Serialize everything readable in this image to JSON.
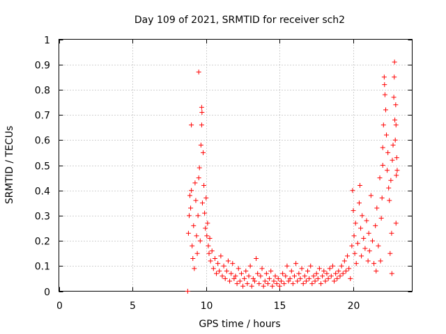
{
  "chart_data": {
    "type": "scatter",
    "title": "Day 109 of 2021, SRMTID for receiver sch2",
    "xlabel": "GPS time / hours",
    "ylabel": "SRMTID / TECUs",
    "xlim": [
      0,
      24
    ],
    "ylim": [
      0,
      1
    ],
    "x_ticks": [
      "0",
      "5",
      "10",
      "15",
      "20"
    ],
    "x_tick_values": [
      0,
      5,
      10,
      15,
      20
    ],
    "y_ticks": [
      "0",
      "0.1",
      "0.2",
      "0.3",
      "0.4",
      "0.5",
      "0.6",
      "0.7",
      "0.8",
      "0.9",
      "1"
    ],
    "y_tick_values": [
      0,
      0.1,
      0.2,
      0.3,
      0.4,
      0.5,
      0.6,
      0.7,
      0.8,
      0.9,
      1
    ],
    "grid": true,
    "marker": "+",
    "color": "#ff0000",
    "series": [
      {
        "name": "sch2",
        "points": [
          [
            8.75,
            0.0
          ],
          [
            8.8,
            0.23
          ],
          [
            8.85,
            0.3
          ],
          [
            8.9,
            0.38
          ],
          [
            8.95,
            0.33
          ],
          [
            9.0,
            0.4
          ],
          [
            9.0,
            0.66
          ],
          [
            9.05,
            0.18
          ],
          [
            9.1,
            0.13
          ],
          [
            9.15,
            0.26
          ],
          [
            9.2,
            0.09
          ],
          [
            9.25,
            0.43
          ],
          [
            9.3,
            0.36
          ],
          [
            9.35,
            0.22
          ],
          [
            9.4,
            0.15
          ],
          [
            9.45,
            0.3
          ],
          [
            9.5,
            0.87
          ],
          [
            9.5,
            0.45
          ],
          [
            9.55,
            0.49
          ],
          [
            9.6,
            0.2
          ],
          [
            9.65,
            0.58
          ],
          [
            9.7,
            0.66
          ],
          [
            9.7,
            0.73
          ],
          [
            9.72,
            0.71
          ],
          [
            9.75,
            0.35
          ],
          [
            9.8,
            0.55
          ],
          [
            9.85,
            0.42
          ],
          [
            9.9,
            0.31
          ],
          [
            9.95,
            0.25
          ],
          [
            10.0,
            0.37
          ],
          [
            10.05,
            0.22
          ],
          [
            10.1,
            0.27
          ],
          [
            10.15,
            0.18
          ],
          [
            10.2,
            0.15
          ],
          [
            10.25,
            0.21
          ],
          [
            10.3,
            0.12
          ],
          [
            10.4,
            0.16
          ],
          [
            10.5,
            0.09
          ],
          [
            10.6,
            0.13
          ],
          [
            10.7,
            0.07
          ],
          [
            10.8,
            0.11
          ],
          [
            10.9,
            0.08
          ],
          [
            11.0,
            0.14
          ],
          [
            11.1,
            0.06
          ],
          [
            11.2,
            0.1
          ],
          [
            11.3,
            0.05
          ],
          [
            11.4,
            0.08
          ],
          [
            11.5,
            0.12
          ],
          [
            11.6,
            0.04
          ],
          [
            11.7,
            0.07
          ],
          [
            11.8,
            0.11
          ],
          [
            11.9,
            0.05
          ],
          [
            12.0,
            0.06
          ],
          [
            12.1,
            0.03
          ],
          [
            12.2,
            0.09
          ],
          [
            12.3,
            0.04
          ],
          [
            12.4,
            0.07
          ],
          [
            12.5,
            0.02
          ],
          [
            12.6,
            0.05
          ],
          [
            12.7,
            0.08
          ],
          [
            12.8,
            0.03
          ],
          [
            12.9,
            0.06
          ],
          [
            13.0,
            0.1
          ],
          [
            13.1,
            0.02
          ],
          [
            13.2,
            0.05
          ],
          [
            13.3,
            0.04
          ],
          [
            13.4,
            0.13
          ],
          [
            13.5,
            0.07
          ],
          [
            13.6,
            0.03
          ],
          [
            13.7,
            0.06
          ],
          [
            13.8,
            0.09
          ],
          [
            13.9,
            0.02
          ],
          [
            14.0,
            0.04
          ],
          [
            14.1,
            0.07
          ],
          [
            14.2,
            0.03
          ],
          [
            14.3,
            0.05
          ],
          [
            14.4,
            0.08
          ],
          [
            14.5,
            0.02
          ],
          [
            14.6,
            0.04
          ],
          [
            14.7,
            0.06
          ],
          [
            14.8,
            0.03
          ],
          [
            14.9,
            0.05
          ],
          [
            15.0,
            0.02
          ],
          [
            15.1,
            0.04
          ],
          [
            15.2,
            0.07
          ],
          [
            15.3,
            0.03
          ],
          [
            15.4,
            0.06
          ],
          [
            15.5,
            0.1
          ],
          [
            15.6,
            0.04
          ],
          [
            15.7,
            0.05
          ],
          [
            15.8,
            0.08
          ],
          [
            15.9,
            0.03
          ],
          [
            16.0,
            0.06
          ],
          [
            16.1,
            0.11
          ],
          [
            16.2,
            0.04
          ],
          [
            16.3,
            0.07
          ],
          [
            16.4,
            0.05
          ],
          [
            16.5,
            0.09
          ],
          [
            16.6,
            0.03
          ],
          [
            16.7,
            0.06
          ],
          [
            16.8,
            0.04
          ],
          [
            16.9,
            0.08
          ],
          [
            17.0,
            0.05
          ],
          [
            17.1,
            0.1
          ],
          [
            17.2,
            0.03
          ],
          [
            17.3,
            0.06
          ],
          [
            17.4,
            0.04
          ],
          [
            17.5,
            0.07
          ],
          [
            17.6,
            0.05
          ],
          [
            17.7,
            0.09
          ],
          [
            17.8,
            0.03
          ],
          [
            17.9,
            0.06
          ],
          [
            18.0,
            0.08
          ],
          [
            18.1,
            0.04
          ],
          [
            18.2,
            0.07
          ],
          [
            18.3,
            0.05
          ],
          [
            18.4,
            0.09
          ],
          [
            18.5,
            0.06
          ],
          [
            18.6,
            0.1
          ],
          [
            18.7,
            0.04
          ],
          [
            18.8,
            0.07
          ],
          [
            18.9,
            0.05
          ],
          [
            19.0,
            0.08
          ],
          [
            19.1,
            0.06
          ],
          [
            19.2,
            0.1
          ],
          [
            19.3,
            0.07
          ],
          [
            19.4,
            0.12
          ],
          [
            19.5,
            0.08
          ],
          [
            19.6,
            0.14
          ],
          [
            19.7,
            0.09
          ],
          [
            19.8,
            0.05
          ],
          [
            19.9,
            0.18
          ],
          [
            19.95,
            0.4
          ],
          [
            20.0,
            0.32
          ],
          [
            20.05,
            0.22
          ],
          [
            20.1,
            0.15
          ],
          [
            20.15,
            0.27
          ],
          [
            20.2,
            0.11
          ],
          [
            20.3,
            0.19
          ],
          [
            20.4,
            0.35
          ],
          [
            20.45,
            0.42
          ],
          [
            20.5,
            0.25
          ],
          [
            20.55,
            0.14
          ],
          [
            20.6,
            0.3
          ],
          [
            20.7,
            0.21
          ],
          [
            20.8,
            0.17
          ],
          [
            20.9,
            0.28
          ],
          [
            21.0,
            0.12
          ],
          [
            21.05,
            0.23
          ],
          [
            21.1,
            0.16
          ],
          [
            21.2,
            0.38
          ],
          [
            21.3,
            0.2
          ],
          [
            21.4,
            0.11
          ],
          [
            21.5,
            0.26
          ],
          [
            21.55,
            0.08
          ],
          [
            21.6,
            0.33
          ],
          [
            21.7,
            0.18
          ],
          [
            21.8,
            0.45
          ],
          [
            21.85,
            0.12
          ],
          [
            21.9,
            0.29
          ],
          [
            21.95,
            0.37
          ],
          [
            22.0,
            0.5
          ],
          [
            22.0,
            0.57
          ],
          [
            22.05,
            0.66
          ],
          [
            22.1,
            0.85
          ],
          [
            22.12,
            0.82
          ],
          [
            22.15,
            0.78
          ],
          [
            22.2,
            0.72
          ],
          [
            22.25,
            0.62
          ],
          [
            22.3,
            0.48
          ],
          [
            22.35,
            0.55
          ],
          [
            22.4,
            0.41
          ],
          [
            22.45,
            0.36
          ],
          [
            22.5,
            0.15
          ],
          [
            22.55,
            0.44
          ],
          [
            22.6,
            0.23
          ],
          [
            22.62,
            0.07
          ],
          [
            22.65,
            0.52
          ],
          [
            22.7,
            0.58
          ],
          [
            22.75,
            0.77
          ],
          [
            22.78,
            0.85
          ],
          [
            22.8,
            0.91
          ],
          [
            22.82,
            0.68
          ],
          [
            22.85,
            0.6
          ],
          [
            22.88,
            0.74
          ],
          [
            22.9,
            0.27
          ],
          [
            22.9,
            0.66
          ],
          [
            22.92,
            0.46
          ],
          [
            22.95,
            0.53
          ],
          [
            22.98,
            0.48
          ]
        ]
      }
    ]
  }
}
